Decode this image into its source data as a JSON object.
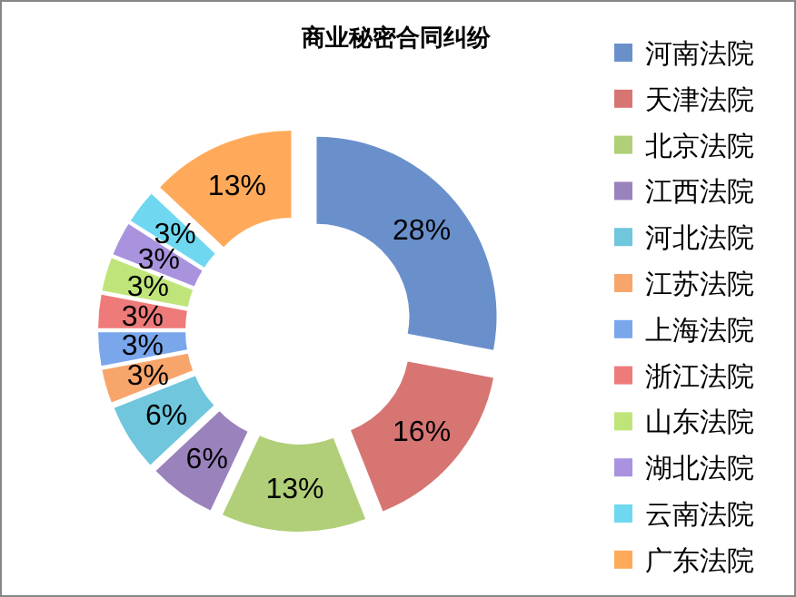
{
  "chart_data": {
    "type": "donut",
    "title": "商业秘密合同纠纷",
    "categories": [
      "河南法院",
      "天津法院",
      "北京法院",
      "江西法院",
      "河北法院",
      "江苏法院",
      "上海法院",
      "浙江法院",
      "山东法院",
      "湖北法院",
      "云南法院",
      "广东法院"
    ],
    "values": [
      28,
      16,
      13,
      6,
      6,
      3,
      3,
      3,
      3,
      3,
      3,
      13
    ],
    "colors": [
      "#6a90cc",
      "#d77573",
      "#b0cf78",
      "#9a82bd",
      "#6fc6dd",
      "#f8a56c",
      "#7aa6ec",
      "#ee7a7a",
      "#bfe57a",
      "#a993de",
      "#6fd8f0",
      "#ffaa5a"
    ],
    "value_labels": [
      "28%",
      "16%",
      "13%",
      "6%",
      "6%",
      "3%",
      "3%",
      "3%",
      "3%",
      "3%",
      "3%",
      "13%"
    ],
    "legend": "right"
  }
}
